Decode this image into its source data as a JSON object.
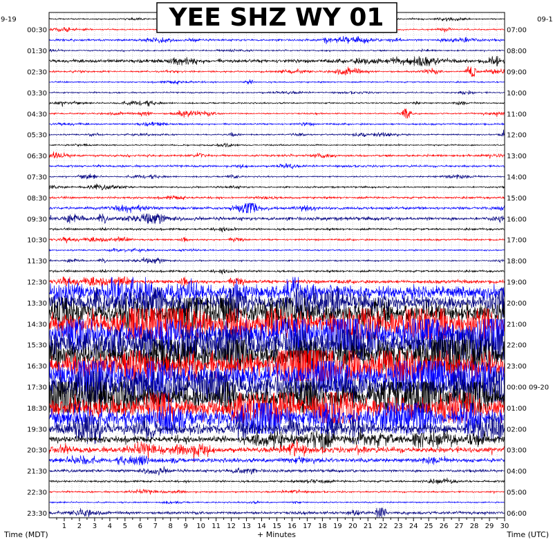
{
  "chart_data": {
    "type": "line",
    "title": "YEE SHZ WY 01",
    "xlabel": "+ Minutes",
    "left_axis_label": "Time (MDT)",
    "right_axis_label": "Time (UTC)",
    "left_date": "9-19",
    "right_date": "09-1",
    "xlim": [
      0,
      30
    ],
    "x_ticks": [
      "1",
      "2",
      "3",
      "4",
      "5",
      "6",
      "7",
      "8",
      "9",
      "10",
      "11",
      "12",
      "13",
      "14",
      "15",
      "16",
      "17",
      "18",
      "19",
      "20",
      "21",
      "22",
      "23",
      "24",
      "25",
      "26",
      "27",
      "28",
      "29",
      "30"
    ],
    "row_count": 48,
    "row_color_cycle": [
      "#000000",
      "#ff0000",
      "#0000ff",
      "#000080"
    ],
    "left_time_labels": [
      "00:30",
      "01:30",
      "02:30",
      "03:30",
      "04:30",
      "05:30",
      "06:30",
      "07:30",
      "08:30",
      "09:30",
      "10:30",
      "11:30",
      "12:30",
      "13:30",
      "14:30",
      "15:30",
      "16:30",
      "17:30",
      "18:30",
      "19:30",
      "20:30",
      "21:30",
      "22:30",
      "23:30"
    ],
    "right_time_labels": [
      "07:00",
      "08:00",
      "09:00",
      "10:00",
      "11:00",
      "12:00",
      "13:00",
      "14:00",
      "15:00",
      "16:00",
      "17:00",
      "18:00",
      "19:00",
      "20:00",
      "21:00",
      "22:00",
      "23:00",
      "00:00 09-20",
      "01:00",
      "02:00",
      "03:00",
      "04:00",
      "05:00",
      "06:00"
    ],
    "relative_amplitude_by_row": [
      1,
      1,
      1.5,
      1,
      2.5,
      1.2,
      1,
      1,
      1,
      1,
      1.2,
      1,
      1,
      1.5,
      1.5,
      1,
      1.2,
      1.5,
      2,
      2.5,
      1.5,
      1.2,
      1,
      1,
      1.5,
      2.5,
      10,
      12,
      14,
      16,
      18,
      18,
      18,
      18,
      18,
      16,
      16,
      14,
      12,
      8,
      5,
      4,
      3,
      2,
      1.5,
      1.2,
      1,
      2
    ],
    "events": [
      {
        "row": 5,
        "minute": 27.8,
        "amplitude": 12
      },
      {
        "row": 9,
        "minute": 23.5,
        "amplitude": 6
      },
      {
        "row": 18,
        "minute": 13.2,
        "amplitude": 14
      },
      {
        "row": 47,
        "minute": 21.8,
        "amplitude": 8
      }
    ],
    "grid": true,
    "legend": "none"
  }
}
